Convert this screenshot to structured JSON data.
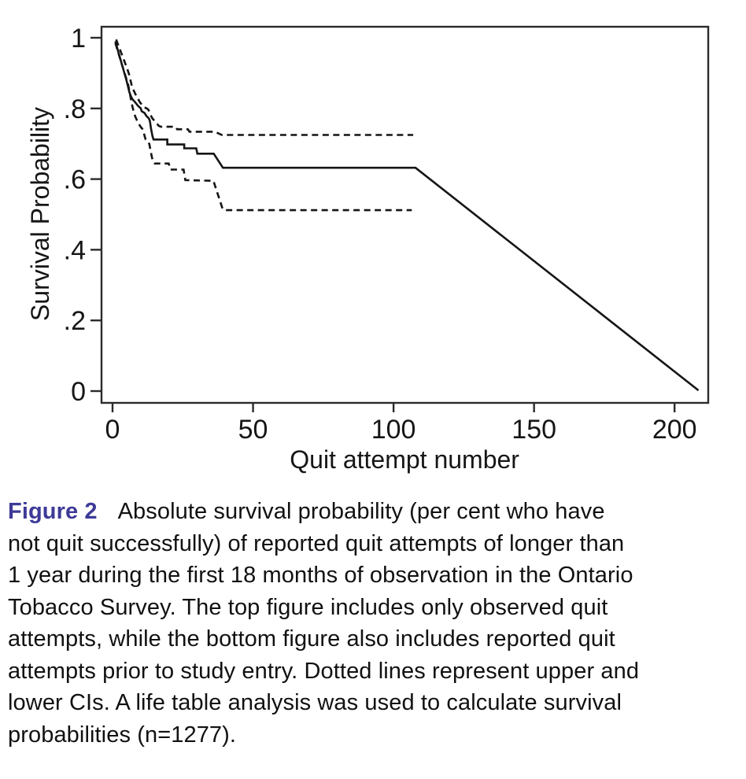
{
  "chart_data": {
    "type": "line",
    "title": "",
    "xlabel": "Quit attempt number",
    "ylabel": "Survival Probability",
    "xlim": [
      -4,
      212
    ],
    "ylim": [
      -0.034,
      1.03
    ],
    "grid": false,
    "legend": "none",
    "frame": "full-box",
    "x_ticks": [
      {
        "value": 0,
        "label": "0"
      },
      {
        "value": 50,
        "label": "50"
      },
      {
        "value": 100,
        "label": "100"
      },
      {
        "value": 150,
        "label": "150"
      },
      {
        "value": 200,
        "label": "200"
      }
    ],
    "y_ticks": [
      {
        "value": 1.0,
        "label": "1"
      },
      {
        "value": 0.8,
        "label": ".8"
      },
      {
        "value": 0.6,
        "label": ".6"
      },
      {
        "value": 0.4,
        "label": ".4"
      },
      {
        "value": 0.2,
        "label": ".2"
      },
      {
        "value": 0.0,
        "label": "0"
      }
    ],
    "line_color": "#151515",
    "frame_color": "#2b2b2b",
    "series": [
      {
        "name": "survival-estimate",
        "style": "solid",
        "points": [
          [
            1,
            0.99
          ],
          [
            2,
            0.962
          ],
          [
            3,
            0.934
          ],
          [
            4,
            0.906
          ],
          [
            5,
            0.878
          ],
          [
            6,
            0.846
          ],
          [
            6.6,
            0.833
          ],
          [
            7.2,
            0.825
          ],
          [
            8,
            0.818
          ],
          [
            8.6,
            0.812
          ],
          [
            9.2,
            0.806
          ],
          [
            10,
            0.801
          ],
          [
            10.4,
            0.792
          ],
          [
            11.4,
            0.787
          ],
          [
            12,
            0.779
          ],
          [
            13,
            0.771
          ],
          [
            13.3,
            0.764
          ],
          [
            13.7,
            0.743
          ],
          [
            14.2,
            0.722
          ],
          [
            14.6,
            0.712
          ],
          [
            19.5,
            0.712
          ],
          [
            19.5,
            0.698
          ],
          [
            25.5,
            0.698
          ],
          [
            25.5,
            0.687
          ],
          [
            29.8,
            0.687
          ],
          [
            30.2,
            0.672
          ],
          [
            36,
            0.672
          ],
          [
            39.3,
            0.632
          ],
          [
            107.8,
            0.632
          ],
          [
            208.5,
            0.002
          ]
        ]
      },
      {
        "name": "upper-ci",
        "style": "dashed",
        "points": [
          [
            1.3,
            0.995
          ],
          [
            2.2,
            0.976
          ],
          [
            3.2,
            0.955
          ],
          [
            4.2,
            0.934
          ],
          [
            5.2,
            0.913
          ],
          [
            5.9,
            0.896
          ],
          [
            6.4,
            0.879
          ],
          [
            6.9,
            0.863
          ],
          [
            7.4,
            0.853
          ],
          [
            8,
            0.843
          ],
          [
            8.5,
            0.834
          ],
          [
            9.2,
            0.825
          ],
          [
            9.8,
            0.817
          ],
          [
            10.5,
            0.81
          ],
          [
            11.2,
            0.804
          ],
          [
            12.6,
            0.798
          ],
          [
            13.2,
            0.79
          ],
          [
            13.7,
            0.779
          ],
          [
            14.3,
            0.77
          ],
          [
            15.2,
            0.764
          ],
          [
            15.8,
            0.757
          ],
          [
            16.4,
            0.751
          ],
          [
            17.2,
            0.748
          ],
          [
            22.4,
            0.748
          ],
          [
            23,
            0.741
          ],
          [
            26.8,
            0.741
          ],
          [
            27.4,
            0.734
          ],
          [
            36.4,
            0.734
          ],
          [
            38.9,
            0.725
          ],
          [
            107,
            0.725
          ]
        ]
      },
      {
        "name": "lower-ci",
        "style": "dashed",
        "points": [
          [
            1,
            0.985
          ],
          [
            2,
            0.959
          ],
          [
            3,
            0.933
          ],
          [
            4,
            0.907
          ],
          [
            5,
            0.882
          ],
          [
            5.6,
            0.866
          ],
          [
            6.1,
            0.845
          ],
          [
            6.6,
            0.823
          ],
          [
            7.1,
            0.804
          ],
          [
            7.6,
            0.789
          ],
          [
            8.1,
            0.777
          ],
          [
            8.7,
            0.766
          ],
          [
            9.3,
            0.757
          ],
          [
            9.9,
            0.749
          ],
          [
            10.6,
            0.742
          ],
          [
            11,
            0.737
          ],
          [
            11.4,
            0.722
          ],
          [
            11.8,
            0.712
          ],
          [
            12.6,
            0.706
          ],
          [
            13.1,
            0.699
          ],
          [
            13.5,
            0.682
          ],
          [
            14,
            0.662
          ],
          [
            14.6,
            0.647
          ],
          [
            15,
            0.644
          ],
          [
            20,
            0.644
          ],
          [
            20.6,
            0.627
          ],
          [
            25.3,
            0.627
          ],
          [
            25.9,
            0.597
          ],
          [
            35.9,
            0.595
          ],
          [
            39.2,
            0.515
          ],
          [
            40,
            0.512
          ],
          [
            106.5,
            0.512
          ]
        ]
      }
    ]
  },
  "caption": {
    "label": "Figure 2",
    "label_color": "#3d3a97",
    "first_line_rest": "Absolute survival probability (per cent who have",
    "lines": [
      "not quit successfully) of reported quit attempts of longer than",
      "1 year during the first 18 months of observation in the Ontario",
      "Tobacco Survey. The top figure includes only observed quit",
      "attempts, while the bottom figure also includes reported quit",
      "attempts prior to study entry. Dotted lines represent upper and",
      "lower CIs. A life table analysis was used to calculate survival",
      "probabilities (n=1277)."
    ]
  }
}
